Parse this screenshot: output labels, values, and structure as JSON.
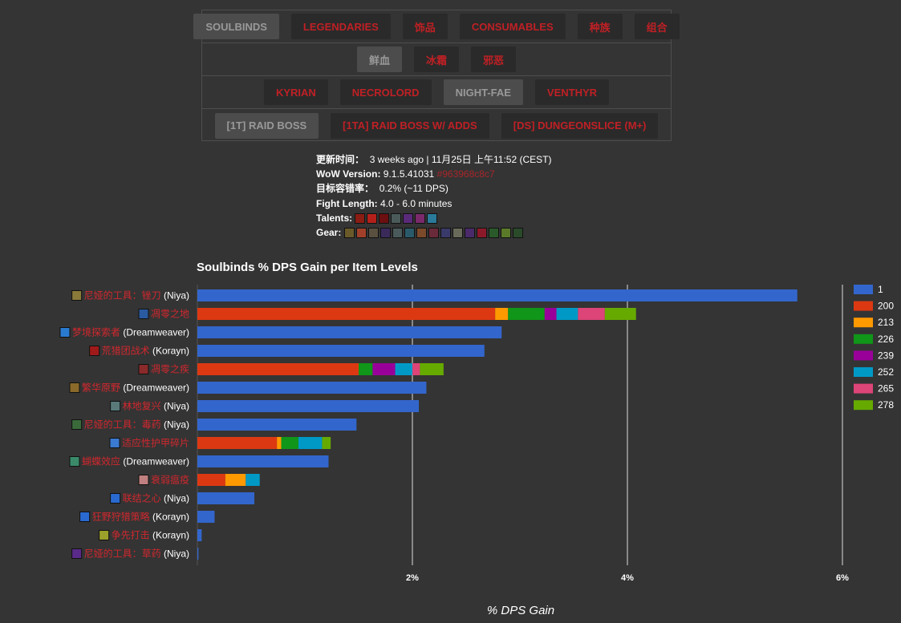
{
  "nav": {
    "rows": [
      [
        {
          "label": "SOULBINDS",
          "active": true
        },
        {
          "label": "LEGENDARIES",
          "active": false
        },
        {
          "label": "饰品",
          "active": false
        },
        {
          "label": "CONSUMABLES",
          "active": false
        },
        {
          "label": "种族",
          "active": false
        },
        {
          "label": "组合",
          "active": false
        }
      ],
      [
        {
          "label": "鲜血",
          "active": true
        },
        {
          "label": "冰霜",
          "active": false
        },
        {
          "label": "邪恶",
          "active": false
        }
      ],
      [
        {
          "label": "KYRIAN",
          "active": false
        },
        {
          "label": "NECROLORD",
          "active": false
        },
        {
          "label": "NIGHT-FAE",
          "active": true
        },
        {
          "label": "VENTHYR",
          "active": false
        }
      ],
      [
        {
          "label": "[1T] RAID BOSS",
          "active": true
        },
        {
          "label": "[1TA] RAID BOSS W/ ADDS",
          "active": false
        },
        {
          "label": "[DS] DUNGEONSLICE (M+)",
          "active": false
        }
      ]
    ]
  },
  "info": {
    "updated_label": "更新时间：",
    "updated_value": "3 weeks ago | 11月25日 上午11:52 (CEST)",
    "wow_label": "WoW Version:",
    "wow_value": "9.1.5.41031",
    "wow_hash": "#963968c8c7",
    "tolerance_label": "目标容错率：",
    "tolerance_value": "0.2% (~11 DPS)",
    "fight_label": "Fight Length:",
    "fight_value": "4.0 - 6.0 minutes",
    "talents_label": "Talents:",
    "talent_icons": [
      "#8a1c14",
      "#b3201a",
      "#6b0f10",
      "#4a5a58",
      "#5a2a7a",
      "#7a2a6a",
      "#2a7a9a"
    ],
    "gear_label": "Gear:",
    "gear_icons": [
      "#6a5a2a",
      "#a0402a",
      "#5a5040",
      "#3a2a5a",
      "#4a5a5a",
      "#2a5a6a",
      "#7a4a2a",
      "#6a2a3a",
      "#3a3a6a",
      "#6a6a5a",
      "#4a2a6a",
      "#8a1a2a",
      "#2a5a2a",
      "#5a7a2a",
      "#2a4a2a"
    ]
  },
  "colors": {
    "background": "#343434",
    "grid": "#dddddd",
    "spell_label": "#d0282e",
    "covenant_label": "#ffffff"
  },
  "chart_data": {
    "type": "bar",
    "orientation": "horizontal",
    "stacked": true,
    "title": "Soulbinds % DPS Gain per Item Levels",
    "xlabel": "% DPS Gain",
    "xlim": [
      0,
      6
    ],
    "xticks": [
      2,
      4,
      6
    ],
    "xtick_labels": [
      "2%",
      "4%",
      "6%"
    ],
    "grid": true,
    "legend_position": "right",
    "categories": [
      {
        "name": "尼娅的工具：锉刀",
        "covenant": "(Niya)",
        "icon": "#8a7a3a"
      },
      {
        "name": "凋零之地",
        "covenant": "",
        "icon": "#2a5aa0"
      },
      {
        "name": "梦境探索者",
        "covenant": "(Dreamweaver)",
        "icon": "#2a7ad0"
      },
      {
        "name": "荒猎团战术",
        "covenant": "(Korayn)",
        "icon": "#a01a1a"
      },
      {
        "name": "凋零之疾",
        "covenant": "",
        "icon": "#8a2a2a"
      },
      {
        "name": "繁华原野",
        "covenant": "(Dreamweaver)",
        "icon": "#8a6a2a"
      },
      {
        "name": "林地复兴",
        "covenant": "(Niya)",
        "icon": "#5a7a7a"
      },
      {
        "name": "尼娅的工具：毒药",
        "covenant": "(Niya)",
        "icon": "#3a6a3a"
      },
      {
        "name": "适应性护甲碎片",
        "covenant": "",
        "icon": "#3a7ad0"
      },
      {
        "name": "蝴蝶效应",
        "covenant": "(Dreamweaver)",
        "icon": "#3a8a6a"
      },
      {
        "name": "衰弱瘟疫",
        "covenant": "",
        "icon": "#c08080"
      },
      {
        "name": "联结之心",
        "covenant": "(Niya)",
        "icon": "#2a6ad0"
      },
      {
        "name": "狂野狩猎策略",
        "covenant": "(Korayn)",
        "icon": "#2a6ad0"
      },
      {
        "name": "争先打击",
        "covenant": "(Korayn)",
        "icon": "#9aa02a"
      },
      {
        "name": "尼娅的工具：草药",
        "covenant": "(Niya)",
        "icon": "#5a2a8a"
      }
    ],
    "series": [
      {
        "name": "1",
        "color": "#3366cc",
        "values": [
          5.58,
          0,
          2.83,
          2.67,
          0,
          2.13,
          2.06,
          1.48,
          0,
          1.22,
          0,
          0.53,
          0.16,
          0.04,
          0.01
        ]
      },
      {
        "name": "200",
        "color": "#dc3912",
        "values": [
          0,
          2.77,
          0,
          0,
          1.5,
          0,
          0,
          0,
          0.74,
          0,
          0.26,
          0,
          0,
          0,
          0
        ]
      },
      {
        "name": "213",
        "color": "#ff9900",
        "values": [
          0,
          0.12,
          0,
          0,
          0,
          0,
          0,
          0,
          0.04,
          0,
          0.19,
          0,
          0,
          0,
          0
        ]
      },
      {
        "name": "226",
        "color": "#109618",
        "values": [
          0,
          0.34,
          0,
          0,
          0.13,
          0,
          0,
          0,
          0.16,
          0,
          0,
          0,
          0,
          0,
          0
        ]
      },
      {
        "name": "239",
        "color": "#990099",
        "values": [
          0,
          0.11,
          0,
          0,
          0.21,
          0,
          0,
          0,
          0,
          0,
          0,
          0,
          0,
          0,
          0
        ]
      },
      {
        "name": "252",
        "color": "#0099c6",
        "values": [
          0,
          0.2,
          0,
          0,
          0.16,
          0,
          0,
          0,
          0.22,
          0,
          0.13,
          0,
          0,
          0,
          0
        ]
      },
      {
        "name": "265",
        "color": "#dd4477",
        "values": [
          0,
          0.25,
          0,
          0,
          0.07,
          0,
          0,
          0,
          0,
          0,
          0,
          0,
          0,
          0,
          0
        ]
      },
      {
        "name": "278",
        "color": "#66aa00",
        "values": [
          0,
          0.29,
          0,
          0,
          0.22,
          0,
          0,
          0,
          0.08,
          0,
          0,
          0,
          0,
          0,
          0
        ]
      }
    ]
  }
}
